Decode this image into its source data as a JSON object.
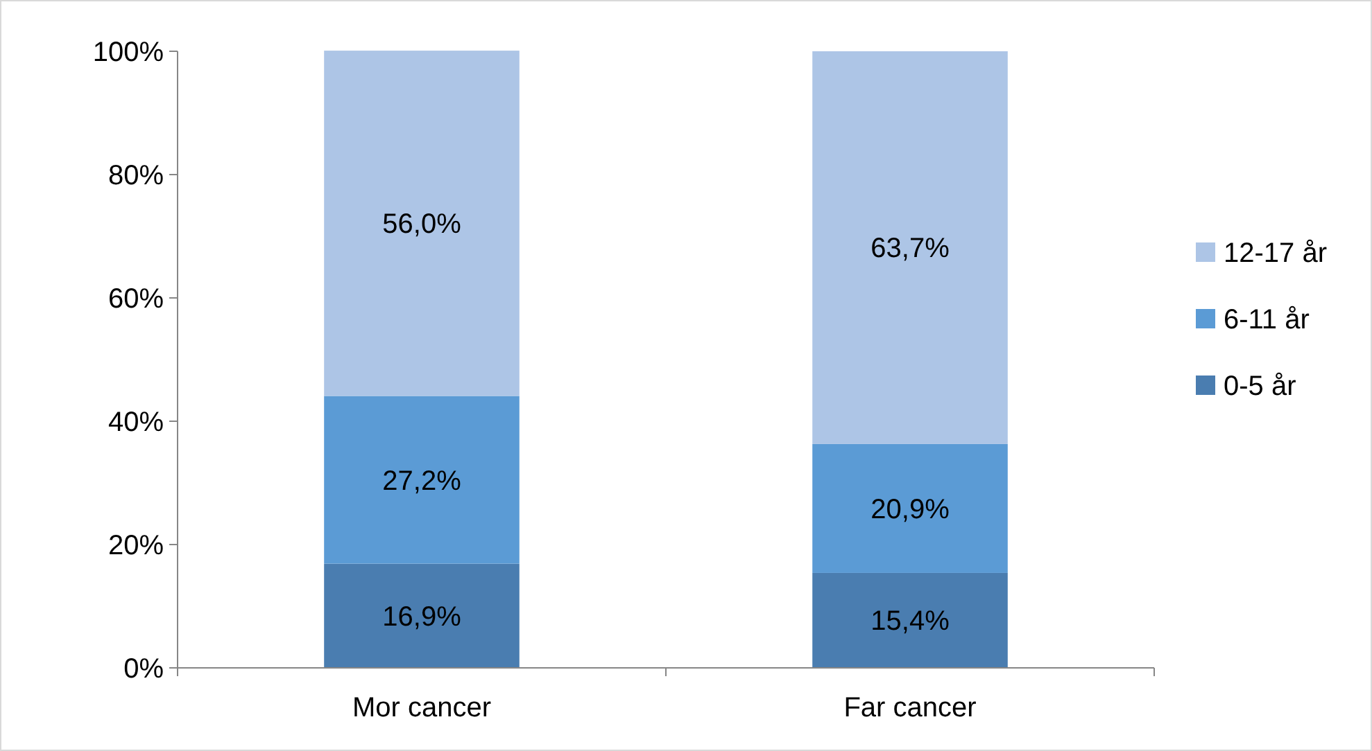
{
  "chart_data": {
    "type": "bar",
    "stacked": true,
    "categories": [
      "Mor cancer",
      "Far cancer"
    ],
    "series": [
      {
        "name": "0-5 år",
        "color": "#4a7db0",
        "values": [
          16.9,
          15.4
        ],
        "value_labels": [
          "16,9%",
          "15,4%"
        ]
      },
      {
        "name": "6-11 år",
        "color": "#5b9bd5",
        "values": [
          27.2,
          20.9
        ],
        "value_labels": [
          "27,2%",
          "20,9%"
        ]
      },
      {
        "name": "12-17 år",
        "color": "#adc5e6",
        "values": [
          56.0,
          63.7
        ],
        "value_labels": [
          "56,0%",
          "63,7%"
        ]
      }
    ],
    "ylim": [
      0,
      100
    ],
    "yticks": [
      {
        "value": 0,
        "label": "0%"
      },
      {
        "value": 20,
        "label": "20%"
      },
      {
        "value": 40,
        "label": "40%"
      },
      {
        "value": 60,
        "label": "60%"
      },
      {
        "value": 80,
        "label": "80%"
      },
      {
        "value": 100,
        "label": "100%"
      }
    ],
    "grid": false,
    "legend": "right"
  }
}
